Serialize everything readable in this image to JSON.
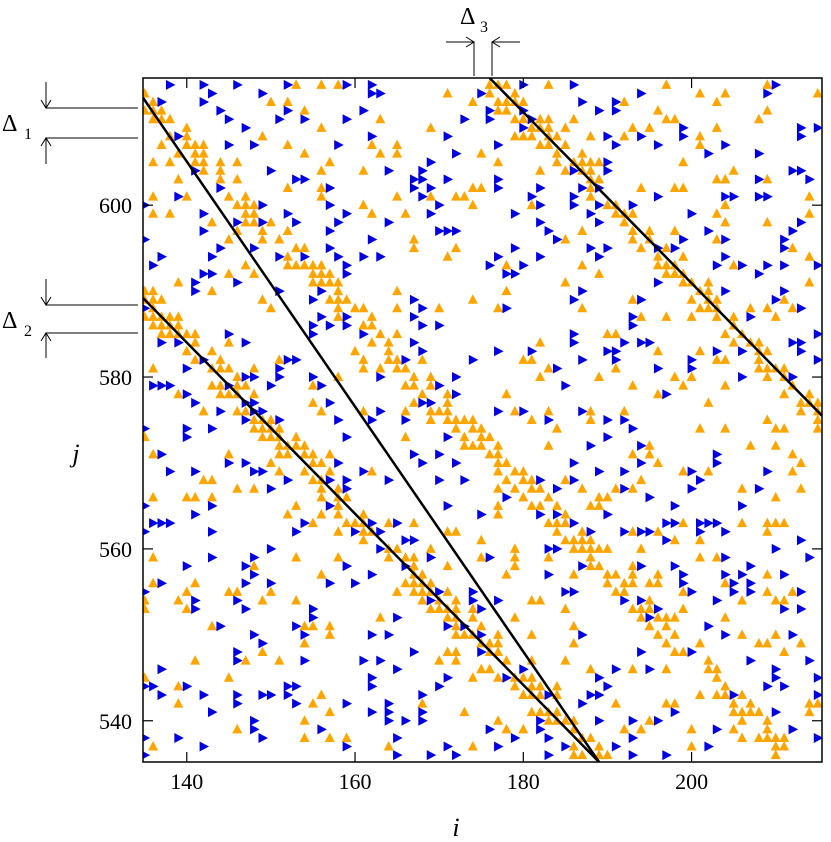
{
  "chart_data": {
    "type": "scatter",
    "xlabel": "i",
    "ylabel": "j",
    "xlim": [
      134.8,
      215.5
    ],
    "ylim": [
      535.2,
      614.8
    ],
    "x_ticks": [
      140,
      160,
      180,
      200
    ],
    "y_ticks": [
      540,
      560,
      580,
      600
    ],
    "grid": false,
    "series": [
      {
        "marker": "triangle-up",
        "color": "#FFA500"
      },
      {
        "marker": "triangle-right",
        "color": "#0000E0"
      }
    ],
    "diagonal_lines": [
      {
        "from": [
          134.8,
          612.5
        ],
        "to": [
          189.0,
          535.2
        ]
      },
      {
        "from": [
          134.8,
          589.2
        ],
        "to": [
          189.0,
          535.2
        ]
      },
      {
        "from": [
          176.0,
          614.8
        ],
        "to": [
          215.5,
          575.5
        ]
      }
    ],
    "annotations": [
      {
        "symbol": "Δ",
        "subscript": "1"
      },
      {
        "symbol": "Δ",
        "subscript": "2"
      },
      {
        "symbol": "Δ",
        "subscript": "3"
      }
    ]
  }
}
